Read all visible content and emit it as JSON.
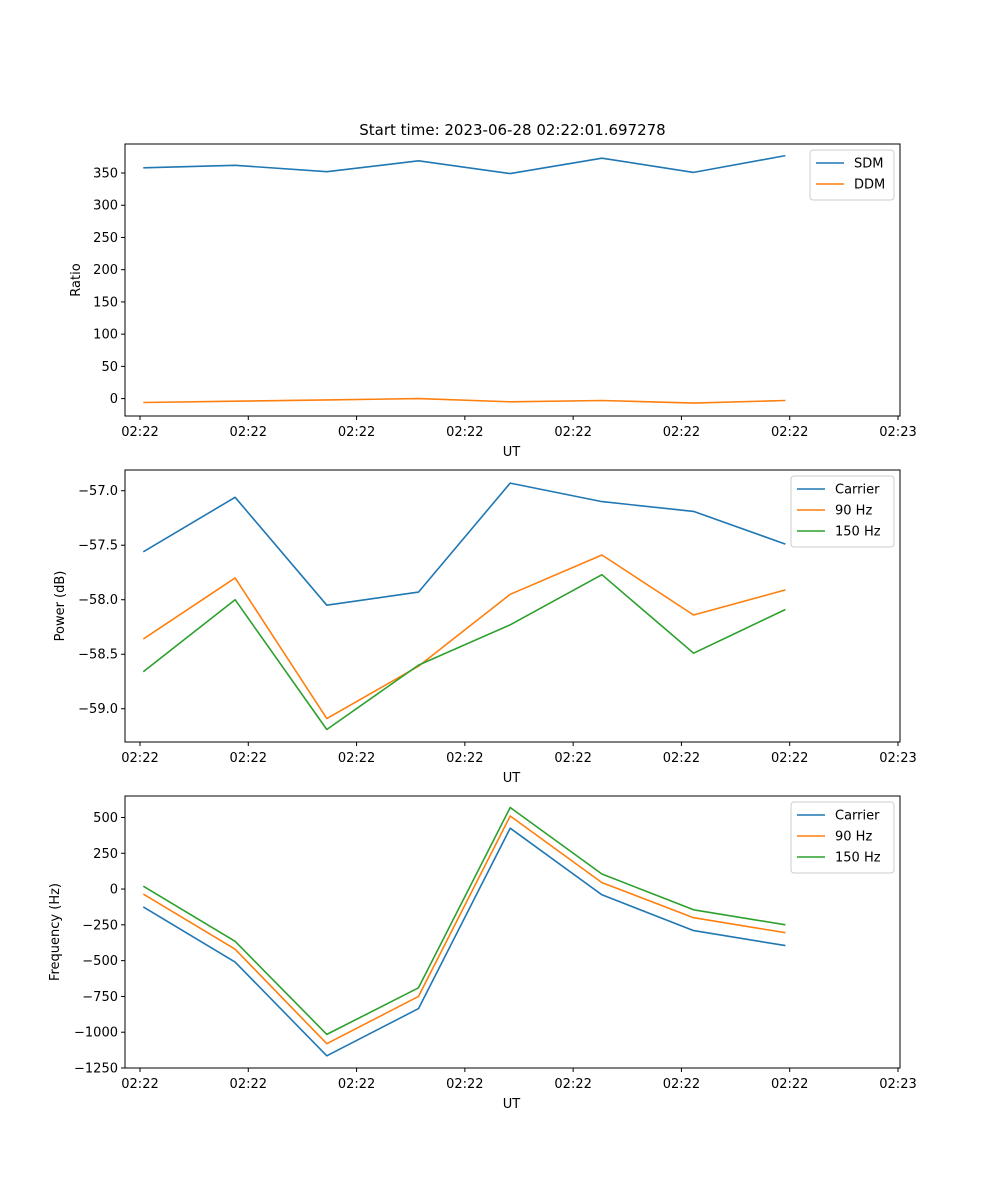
{
  "figure": {
    "title": "Start time: 2023-06-28 02:22:01.697278"
  },
  "chart_data": [
    {
      "type": "line",
      "title": "Start time: 2023-06-28 02:22:01.697278",
      "xlabel": "UT",
      "ylabel": "Ratio",
      "xticks": [
        "02:22",
        "02:22",
        "02:22",
        "02:22",
        "02:22",
        "02:22",
        "02:22",
        "02:23"
      ],
      "x": [
        1,
        2,
        3,
        4,
        5,
        6,
        7,
        8
      ],
      "xlim": [
        0.8,
        9.25
      ],
      "ylim": [
        -27,
        395
      ],
      "yticks": [
        0,
        50,
        100,
        150,
        200,
        250,
        300,
        350
      ],
      "legend_position": "top-right",
      "grid": false,
      "series": [
        {
          "name": "SDM",
          "color": "#1f77b4",
          "values": [
            358,
            362,
            352,
            369,
            349,
            373,
            351,
            377
          ]
        },
        {
          "name": "DDM",
          "color": "#ff7f0e",
          "values": [
            -6,
            -4,
            -2,
            0,
            -5,
            -3,
            -7,
            -3
          ]
        }
      ]
    },
    {
      "type": "line",
      "title": "",
      "xlabel": "UT",
      "ylabel": "Power (dB)",
      "xticks": [
        "02:22",
        "02:22",
        "02:22",
        "02:22",
        "02:22",
        "02:22",
        "02:22",
        "02:23"
      ],
      "x": [
        1,
        2,
        3,
        4,
        5,
        6,
        7,
        8
      ],
      "xlim": [
        0.8,
        9.25
      ],
      "ylim": [
        -59.305,
        -56.81
      ],
      "yticks": [
        -59.0,
        -58.5,
        -58.0,
        -57.5,
        -57.0
      ],
      "ytick_labels": [
        "−59.0",
        "−58.5",
        "−58.0",
        "−57.5",
        "−57.0"
      ],
      "legend_position": "top-right",
      "grid": false,
      "series": [
        {
          "name": "Carrier",
          "color": "#1f77b4",
          "values": [
            -57.56,
            -57.06,
            -58.05,
            -57.93,
            -56.93,
            -57.1,
            -57.19,
            -57.49
          ]
        },
        {
          "name": "90 Hz",
          "color": "#ff7f0e",
          "values": [
            -58.36,
            -57.8,
            -59.09,
            -58.61,
            -57.95,
            -57.59,
            -58.14,
            -57.91
          ]
        },
        {
          "name": "150 Hz",
          "color": "#2ca02c",
          "values": [
            -58.66,
            -58.0,
            -59.19,
            -58.6,
            -58.23,
            -57.77,
            -58.49,
            -58.09
          ]
        }
      ]
    },
    {
      "type": "line",
      "title": "",
      "xlabel": "UT",
      "ylabel": "Frequency (Hz)",
      "xticks": [
        "02:22",
        "02:22",
        "02:22",
        "02:22",
        "02:22",
        "02:22",
        "02:22",
        "02:23"
      ],
      "x": [
        1,
        2,
        3,
        4,
        5,
        6,
        7,
        8
      ],
      "xlim": [
        0.8,
        9.25
      ],
      "ylim": [
        -1250,
        650
      ],
      "yticks": [
        -1250,
        -1000,
        -750,
        -500,
        -250,
        0,
        250,
        500
      ],
      "ytick_labels": [
        "−1250",
        "−1000",
        "−750",
        "−500",
        "−250",
        "0",
        "250",
        "500"
      ],
      "legend_position": "top-right",
      "grid": false,
      "series": [
        {
          "name": "Carrier",
          "color": "#1f77b4",
          "values": [
            -125,
            -510,
            -1165,
            -835,
            425,
            -40,
            -290,
            -395
          ]
        },
        {
          "name": "90 Hz",
          "color": "#ff7f0e",
          "values": [
            -35,
            -420,
            -1080,
            -750,
            510,
            45,
            -200,
            -305
          ]
        },
        {
          "name": "150 Hz",
          "color": "#2ca02c",
          "values": [
            20,
            -365,
            -1015,
            -690,
            570,
            105,
            -145,
            -250
          ]
        }
      ]
    }
  ]
}
